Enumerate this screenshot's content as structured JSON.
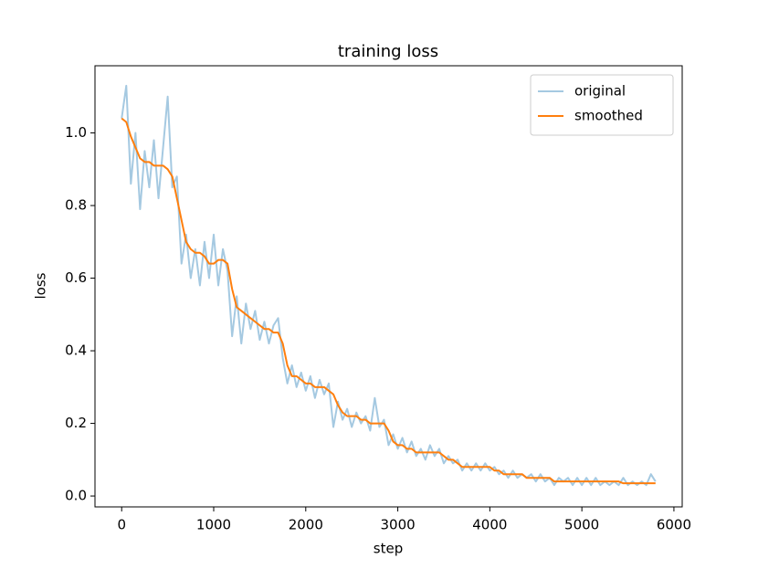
{
  "chart_data": {
    "type": "line",
    "title": "training loss",
    "xlabel": "step",
    "ylabel": "loss",
    "x": [
      0,
      50,
      100,
      150,
      200,
      250,
      300,
      350,
      400,
      450,
      500,
      550,
      600,
      650,
      700,
      750,
      800,
      850,
      900,
      950,
      1000,
      1050,
      1100,
      1150,
      1200,
      1250,
      1300,
      1350,
      1400,
      1450,
      1500,
      1550,
      1600,
      1650,
      1700,
      1750,
      1800,
      1850,
      1900,
      1950,
      2000,
      2050,
      2100,
      2150,
      2200,
      2250,
      2300,
      2350,
      2400,
      2450,
      2500,
      2550,
      2600,
      2650,
      2700,
      2750,
      2800,
      2850,
      2900,
      2950,
      3000,
      3050,
      3100,
      3150,
      3200,
      3250,
      3300,
      3350,
      3400,
      3450,
      3500,
      3550,
      3600,
      3650,
      3700,
      3750,
      3800,
      3850,
      3900,
      3950,
      4000,
      4050,
      4100,
      4150,
      4200,
      4250,
      4300,
      4350,
      4400,
      4450,
      4500,
      4550,
      4600,
      4650,
      4700,
      4750,
      4800,
      4850,
      4900,
      4950,
      5000,
      5050,
      5100,
      5150,
      5200,
      5250,
      5300,
      5350,
      5400,
      5450,
      5500,
      5550,
      5600,
      5650,
      5700,
      5750,
      5800
    ],
    "series": [
      {
        "name": "original",
        "color": "#1f77b4",
        "opacity": 0.4,
        "values": [
          1.04,
          1.13,
          0.86,
          1.0,
          0.79,
          0.95,
          0.85,
          0.98,
          0.82,
          0.96,
          1.1,
          0.85,
          0.88,
          0.64,
          0.72,
          0.6,
          0.68,
          0.58,
          0.7,
          0.6,
          0.72,
          0.58,
          0.68,
          0.62,
          0.44,
          0.55,
          0.42,
          0.53,
          0.46,
          0.51,
          0.43,
          0.48,
          0.42,
          0.47,
          0.49,
          0.38,
          0.31,
          0.36,
          0.3,
          0.34,
          0.29,
          0.33,
          0.27,
          0.32,
          0.28,
          0.31,
          0.19,
          0.26,
          0.21,
          0.24,
          0.19,
          0.23,
          0.2,
          0.22,
          0.18,
          0.27,
          0.19,
          0.21,
          0.14,
          0.17,
          0.13,
          0.16,
          0.12,
          0.15,
          0.11,
          0.13,
          0.1,
          0.14,
          0.11,
          0.13,
          0.09,
          0.11,
          0.09,
          0.1,
          0.07,
          0.09,
          0.07,
          0.09,
          0.07,
          0.09,
          0.07,
          0.08,
          0.06,
          0.07,
          0.05,
          0.07,
          0.05,
          0.06,
          0.05,
          0.06,
          0.04,
          0.06,
          0.04,
          0.05,
          0.03,
          0.05,
          0.04,
          0.05,
          0.03,
          0.05,
          0.03,
          0.05,
          0.03,
          0.05,
          0.03,
          0.04,
          0.03,
          0.04,
          0.03,
          0.05,
          0.03,
          0.04,
          0.03,
          0.04,
          0.03,
          0.06,
          0.04
        ]
      },
      {
        "name": "smoothed",
        "color": "#ff7f0e",
        "opacity": 1,
        "values": [
          1.04,
          1.03,
          0.99,
          0.96,
          0.93,
          0.92,
          0.92,
          0.91,
          0.91,
          0.91,
          0.9,
          0.88,
          0.82,
          0.76,
          0.7,
          0.68,
          0.67,
          0.67,
          0.66,
          0.64,
          0.64,
          0.65,
          0.65,
          0.64,
          0.57,
          0.52,
          0.51,
          0.5,
          0.49,
          0.48,
          0.47,
          0.46,
          0.46,
          0.45,
          0.45,
          0.42,
          0.36,
          0.33,
          0.33,
          0.32,
          0.31,
          0.31,
          0.3,
          0.3,
          0.3,
          0.29,
          0.28,
          0.25,
          0.23,
          0.22,
          0.22,
          0.22,
          0.21,
          0.21,
          0.2,
          0.2,
          0.2,
          0.2,
          0.18,
          0.15,
          0.14,
          0.14,
          0.13,
          0.13,
          0.12,
          0.12,
          0.12,
          0.12,
          0.12,
          0.12,
          0.11,
          0.1,
          0.1,
          0.09,
          0.08,
          0.08,
          0.08,
          0.08,
          0.08,
          0.08,
          0.08,
          0.07,
          0.07,
          0.06,
          0.06,
          0.06,
          0.06,
          0.06,
          0.05,
          0.05,
          0.05,
          0.05,
          0.05,
          0.05,
          0.04,
          0.04,
          0.04,
          0.04,
          0.04,
          0.04,
          0.04,
          0.04,
          0.04,
          0.04,
          0.04,
          0.04,
          0.04,
          0.04,
          0.04,
          0.035,
          0.035,
          0.035,
          0.035,
          0.035,
          0.035,
          0.035,
          0.035
        ]
      }
    ],
    "xlim": [
      -290,
      6090
    ],
    "ylim": [
      -0.03,
      1.185
    ],
    "xticks": [
      0,
      1000,
      2000,
      3000,
      4000,
      5000,
      6000
    ],
    "yticks": [
      {
        "value": 0,
        "label": "0.0"
      },
      0.2,
      0.4,
      0.6,
      0.8,
      {
        "value": 1,
        "label": "1.0"
      }
    ],
    "legend": "upper right",
    "grid": false
  }
}
